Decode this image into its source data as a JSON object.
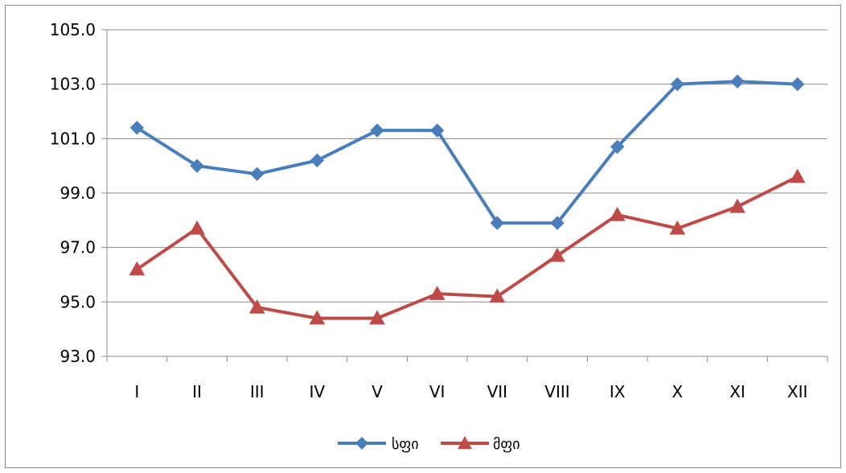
{
  "chart_data": {
    "type": "line",
    "categories": [
      "I",
      "II",
      "III",
      "IV",
      "V",
      "VI",
      "VII",
      "VIII",
      "IX",
      "X",
      "XI",
      "XII"
    ],
    "series": [
      {
        "name": "სფი",
        "color": "#4a7ebb",
        "marker": "diamond",
        "values": [
          101.4,
          100.0,
          99.7,
          100.2,
          101.3,
          101.3,
          97.9,
          97.9,
          100.7,
          103.0,
          103.1,
          103.0
        ]
      },
      {
        "name": "მფი",
        "color": "#be4b48",
        "marker": "triangle",
        "values": [
          96.2,
          97.7,
          94.8,
          94.4,
          94.4,
          95.3,
          95.2,
          96.7,
          98.2,
          97.7,
          98.5,
          99.6
        ]
      }
    ],
    "yticks": [
      "93.0",
      "95.0",
      "97.0",
      "99.0",
      "101.0",
      "103.0",
      "105.0"
    ],
    "ylim": [
      93,
      105
    ],
    "grid": true,
    "legend": "bottom"
  }
}
